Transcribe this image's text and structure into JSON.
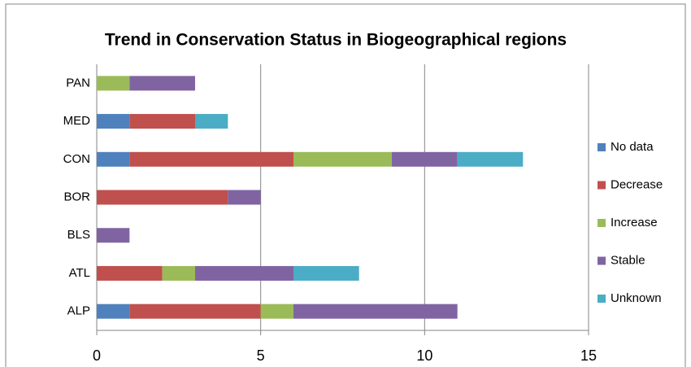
{
  "chart_data": {
    "type": "bar",
    "orientation": "horizontal",
    "stacked": true,
    "title": "Trend in Conservation Status in Biogeographical regions",
    "categories": [
      "ALP",
      "ATL",
      "BLS",
      "BOR",
      "CON",
      "MED",
      "PAN"
    ],
    "series": [
      {
        "name": "No data",
        "color": "#4f81bd",
        "values": [
          1,
          0,
          0,
          0,
          1,
          1,
          0
        ]
      },
      {
        "name": "Decrease",
        "color": "#c0504d",
        "values": [
          4,
          2,
          0,
          4,
          5,
          2,
          0
        ]
      },
      {
        "name": "Increase",
        "color": "#9bbb59",
        "values": [
          1,
          1,
          0,
          0,
          3,
          0,
          1
        ]
      },
      {
        "name": "Stable",
        "color": "#8064a2",
        "values": [
          5,
          3,
          1,
          1,
          2,
          0,
          2
        ]
      },
      {
        "name": "Unknown",
        "color": "#4bacc6",
        "values": [
          0,
          2,
          0,
          0,
          2,
          1,
          0
        ]
      }
    ],
    "xlim": [
      0,
      15
    ],
    "xticks": [
      0,
      5,
      10,
      15
    ],
    "grid": true,
    "legend": "right"
  }
}
